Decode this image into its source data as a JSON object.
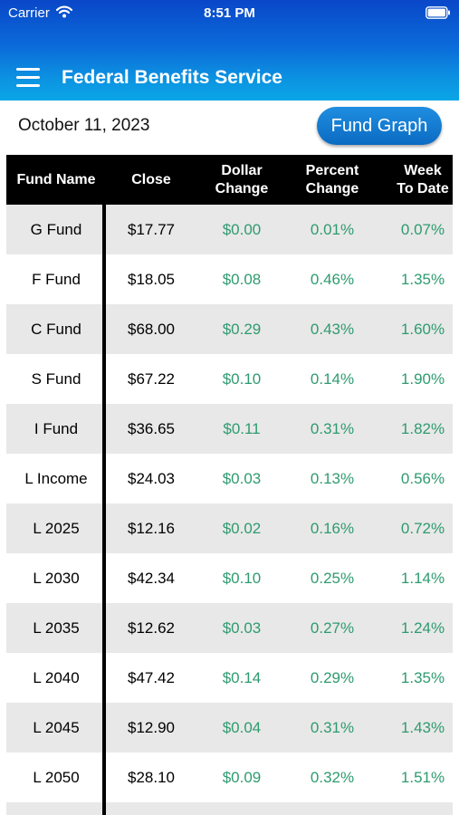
{
  "status_bar": {
    "carrier": "Carrier",
    "time": "8:51 PM"
  },
  "header": {
    "title": "Federal Benefits Service",
    "menu_icon": "hamburger-icon"
  },
  "date": "October 11, 2023",
  "fund_graph_label": "Fund Graph",
  "colors": {
    "header_top": "#0a47c9",
    "header_bottom": "#0aa6e6",
    "positive": "#2e9b6f",
    "row_shade": "#e8e8e8"
  },
  "table": {
    "columns": [
      "Fund Name",
      "Close",
      "Dollar Change",
      "Percent Change",
      "Week To Date"
    ],
    "rows": [
      {
        "name": "G Fund",
        "close": "$17.77",
        "dollar": "$0.00",
        "percent": "0.01%",
        "week": "0.07%"
      },
      {
        "name": "F Fund",
        "close": "$18.05",
        "dollar": "$0.08",
        "percent": "0.46%",
        "week": "1.35%"
      },
      {
        "name": "C Fund",
        "close": "$68.00",
        "dollar": "$0.29",
        "percent": "0.43%",
        "week": "1.60%"
      },
      {
        "name": "S Fund",
        "close": "$67.22",
        "dollar": "$0.10",
        "percent": "0.14%",
        "week": "1.90%"
      },
      {
        "name": "I Fund",
        "close": "$36.65",
        "dollar": "$0.11",
        "percent": "0.31%",
        "week": "1.82%"
      },
      {
        "name": "L Income",
        "close": "$24.03",
        "dollar": "$0.03",
        "percent": "0.13%",
        "week": "0.56%"
      },
      {
        "name": "L 2025",
        "close": "$12.16",
        "dollar": "$0.02",
        "percent": "0.16%",
        "week": "0.72%"
      },
      {
        "name": "L 2030",
        "close": "$42.34",
        "dollar": "$0.10",
        "percent": "0.25%",
        "week": "1.14%"
      },
      {
        "name": "L 2035",
        "close": "$12.62",
        "dollar": "$0.03",
        "percent": "0.27%",
        "week": "1.24%"
      },
      {
        "name": "L 2040",
        "close": "$47.42",
        "dollar": "$0.14",
        "percent": "0.29%",
        "week": "1.35%"
      },
      {
        "name": "L 2045",
        "close": "$12.90",
        "dollar": "$0.04",
        "percent": "0.31%",
        "week": "1.43%"
      },
      {
        "name": "L 2050",
        "close": "$28.10",
        "dollar": "$0.09",
        "percent": "0.32%",
        "week": "1.51%"
      },
      {
        "name": "",
        "close": "",
        "dollar": "",
        "percent": "",
        "week": ""
      }
    ]
  }
}
